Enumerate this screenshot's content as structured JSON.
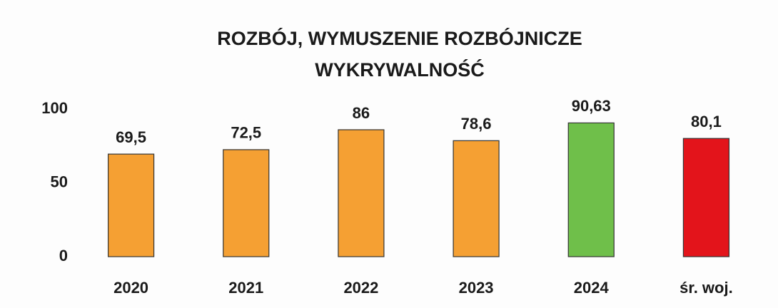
{
  "chart_data": {
    "type": "bar",
    "title": "ROZBÓJ, WYMUSZENIE ROZBÓJNICZE",
    "subtitle": "WYKRYWALNOŚĆ",
    "categories": [
      "2020",
      "2021",
      "2022",
      "2023",
      "2024",
      "śr. woj."
    ],
    "values": [
      69.5,
      72.5,
      86,
      78.6,
      90.63,
      80.1
    ],
    "value_labels": [
      "69,5",
      "72,5",
      "86",
      "78,6",
      "90,63",
      "80,1"
    ],
    "colors": [
      "#f5a033",
      "#f5a033",
      "#f5a033",
      "#f5a033",
      "#6fbf4a",
      "#e3141b"
    ],
    "ylim": [
      0,
      100
    ],
    "yticks": [
      0,
      50,
      100
    ],
    "grid": false
  }
}
